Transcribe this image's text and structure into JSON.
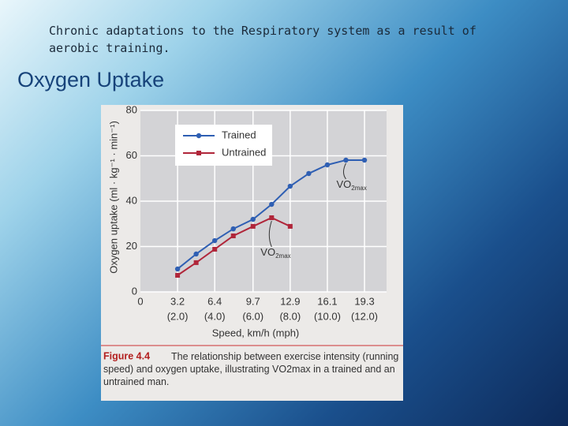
{
  "slide": {
    "title": "Chronic adaptations to the Respiratory system as a result of aerobic training.",
    "heading": "Oxygen Uptake"
  },
  "chart_data": {
    "type": "line",
    "y_label": "Oxygen uptake (ml · kg⁻¹ · min⁻¹)",
    "x_label": "Speed, km/h (mph)",
    "x": [
      3.2,
      4.8,
      6.4,
      8.0,
      9.7,
      11.3,
      12.9,
      14.5,
      16.1,
      17.7,
      19.3
    ],
    "series": [
      {
        "name": "Trained",
        "color": "#2f5fb3",
        "values": [
          10.1,
          16.7,
          22.6,
          27.8,
          32,
          38.6,
          46.6,
          52.2,
          56,
          58.1,
          58.1
        ]
      },
      {
        "name": "Untrained",
        "color": "#b0263a",
        "values": [
          7.3,
          12.9,
          18.8,
          24.7,
          28.9,
          32.7,
          28.9,
          null,
          null,
          null,
          null
        ]
      }
    ],
    "xlim": [
      0,
      21.2
    ],
    "ylim": [
      0,
      80
    ],
    "xticks": [
      0,
      3.2,
      6.4,
      9.7,
      12.9,
      16.1,
      19.3
    ],
    "x_sublabels": [
      null,
      "(2.0)",
      "(4.0)",
      "(6.0)",
      "(8.0)",
      "(10.0)",
      "(12.0)"
    ],
    "yticks": [
      0,
      20,
      40,
      60,
      80
    ],
    "grid": true,
    "annotations": [
      {
        "text": "VO",
        "sub": "2max",
        "x": 17.7,
        "y": 58.1
      },
      {
        "text": "VO",
        "sub": "2max",
        "x": 11.3,
        "y": 32.7
      }
    ],
    "caption": {
      "label": "Figure 4.4",
      "text": "The relationship between exercise intensity (running speed) and oxygen uptake, illustrating VO2max in a trained and an untrained man."
    }
  }
}
